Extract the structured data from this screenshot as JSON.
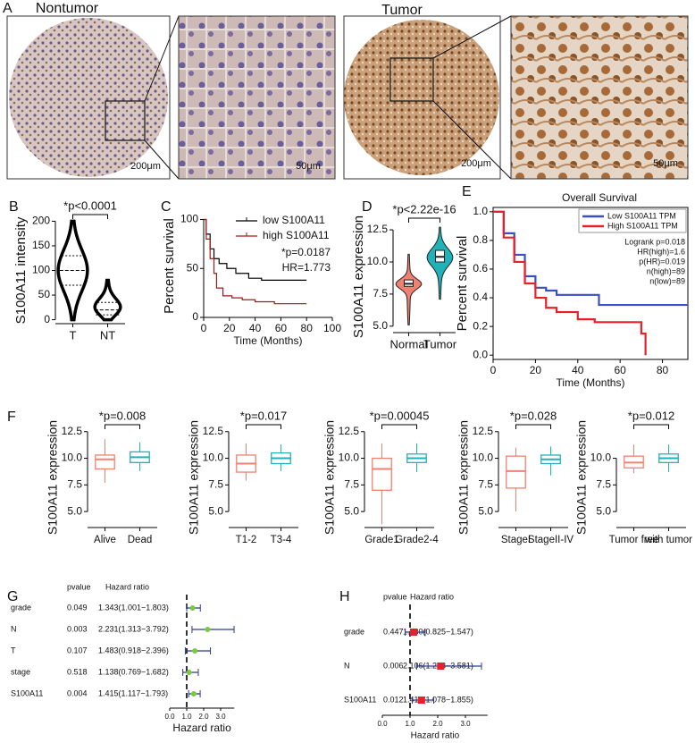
{
  "figure": {
    "panel": "A",
    "labels": [
      "Nontumor",
      "Tumor"
    ],
    "scale_bars": [
      "200μm",
      "50μm",
      "200μm",
      "50μm"
    ]
  },
  "chart_data": [
    {
      "panel": "B",
      "type": "violin",
      "style": "outline",
      "ylabel": "S100A11 intensity",
      "annotation": "*p<0.0001",
      "categories": [
        "T",
        "NT"
      ],
      "colors": [
        "#000000",
        "#000000"
      ],
      "stats": [
        {
          "min": 0,
          "q1": 70,
          "median": 100,
          "q3": 130,
          "max": 200
        },
        {
          "min": 0,
          "q1": 10,
          "median": 20,
          "q3": 35,
          "max": 80
        }
      ],
      "ylim": [
        -8,
        208
      ],
      "yticks": [
        0,
        50,
        100,
        150,
        200
      ]
    },
    {
      "panel": "C",
      "type": "km",
      "ylabel": "Percent survival",
      "xlabel": "Time (Months)",
      "annotations": [
        "*p=0.0187",
        "HR=1.773"
      ],
      "series": [
        {
          "name": "low S100A11",
          "color": "#000000",
          "x": [
            0,
            2,
            2,
            5,
            5,
            8,
            8,
            12,
            12,
            18,
            18,
            25,
            25,
            35,
            35,
            45,
            45,
            80
          ],
          "values": [
            100,
            100,
            85,
            85,
            70,
            70,
            60,
            60,
            55,
            55,
            50,
            50,
            45,
            45,
            40,
            40,
            38,
            38
          ]
        },
        {
          "name": "high S100A11",
          "color": "#a01818",
          "x": [
            0,
            2,
            2,
            5,
            5,
            8,
            8,
            10,
            10,
            15,
            15,
            22,
            22,
            30,
            30,
            40,
            40,
            55,
            55,
            80
          ],
          "values": [
            100,
            100,
            80,
            80,
            60,
            60,
            45,
            45,
            30,
            30,
            22,
            22,
            20,
            20,
            18,
            18,
            16,
            16,
            14,
            14
          ]
        }
      ],
      "xlim": [
        0,
        100
      ],
      "xticks": [
        0,
        20,
        40,
        60,
        80,
        100
      ],
      "ylim": [
        0,
        105
      ],
      "yticks": [
        0,
        50,
        100
      ]
    },
    {
      "panel": "D",
      "type": "violin",
      "style": "filled",
      "ylabel": "S100A11 expression",
      "annotation": "*p<2.22e-16",
      "categories": [
        "Normal",
        "Tumor"
      ],
      "colors": [
        "#f08070",
        "#20b2b8"
      ],
      "stats": [
        {
          "min": 5.1,
          "q1": 8.1,
          "median": 8.3,
          "q3": 8.6,
          "max": 10.6
        },
        {
          "min": 7.1,
          "q1": 10.0,
          "median": 10.4,
          "q3": 10.9,
          "max": 12.7
        }
      ],
      "ylim": [
        4.5,
        13.2
      ],
      "yticks": [
        {
          "value": 5,
          "label": "5.0"
        },
        7.5,
        {
          "value": 10,
          "label": "10.0"
        },
        12.5
      ]
    },
    {
      "panel": "E",
      "type": "km",
      "title": "Overall Survival",
      "ylabel": "Percent survival",
      "xlabel": "Time (Months)",
      "annotations": [
        "Logrank p=0.018",
        "HR(high)=1.6",
        "p(HR)=0.019",
        "n(high)=89",
        "n(low)=89"
      ],
      "series": [
        {
          "name": "Low S100A11 TPM",
          "color": "#3a4fc0",
          "x": [
            0,
            5,
            5,
            10,
            10,
            15,
            15,
            20,
            20,
            25,
            25,
            30,
            30,
            50,
            50,
            92
          ],
          "values": [
            1,
            1,
            0.85,
            0.85,
            0.7,
            0.7,
            0.55,
            0.55,
            0.47,
            0.47,
            0.45,
            0.45,
            0.42,
            0.42,
            0.35,
            0.35
          ]
        },
        {
          "name": "High S100A11 TPM",
          "color": "#e8202a",
          "x": [
            0,
            5,
            5,
            10,
            10,
            15,
            15,
            20,
            20,
            25,
            25,
            30,
            30,
            40,
            40,
            48,
            48,
            70,
            70,
            72,
            72
          ],
          "values": [
            1,
            1,
            0.82,
            0.82,
            0.65,
            0.65,
            0.5,
            0.5,
            0.4,
            0.4,
            0.33,
            0.33,
            0.3,
            0.3,
            0.25,
            0.25,
            0.23,
            0.23,
            0.15,
            0.15,
            0
          ]
        }
      ],
      "xlim": [
        0,
        92
      ],
      "xticks": [
        0,
        20,
        40,
        60,
        80
      ],
      "ylim": [
        -0.03,
        1.03
      ],
      "yticks": [
        {
          "value": 0,
          "label": "0.0"
        },
        0.2,
        0.4,
        0.6,
        0.8,
        {
          "value": 1,
          "label": "1.0"
        }
      ]
    },
    {
      "panel": "F",
      "type": "box",
      "ylabel": "S100A11 expression",
      "annotation": "*p=0.008",
      "categories": [
        "Alive",
        "Dead"
      ],
      "colors": [
        "#f08070",
        "#20b2b8"
      ],
      "stats": [
        {
          "min": 7.7,
          "q1": 9.0,
          "median": 9.9,
          "q3": 10.3,
          "max": 11.8
        },
        {
          "min": 8.8,
          "q1": 9.6,
          "median": 10.1,
          "q3": 10.6,
          "max": 11.5
        }
      ],
      "ylim": [
        3.5,
        12.9
      ],
      "yticks": [
        {
          "value": 5,
          "label": "5.0"
        },
        7.5,
        {
          "value": 10,
          "label": "10.0"
        },
        12.5
      ]
    },
    {
      "type": "box",
      "ylabel": "S100A11 expression",
      "annotation": "*p=0.017",
      "categories": [
        "T1-2",
        "T3-4"
      ],
      "colors": [
        "#f08070",
        "#20b2b8"
      ],
      "stats": [
        {
          "min": 7.9,
          "q1": 8.7,
          "median": 9.5,
          "q3": 10.3,
          "max": 11.4
        },
        {
          "min": 8.8,
          "q1": 9.5,
          "median": 10.0,
          "q3": 10.5,
          "max": 11.3
        }
      ],
      "ylim": [
        3.5,
        12.9
      ],
      "yticks": [
        {
          "value": 5,
          "label": "5.0"
        },
        7.5,
        {
          "value": 10,
          "label": "10.0"
        },
        12.5
      ]
    },
    {
      "type": "box",
      "ylabel": "S100A11 expression",
      "annotation": "*p=0.00045",
      "categories": [
        "Grade1",
        "Grade2-4"
      ],
      "colors": [
        "#f08070",
        "#20b2b8"
      ],
      "stats": [
        {
          "min": 3.8,
          "q1": 7.0,
          "median": 9.0,
          "q3": 10.0,
          "max": 11.4
        },
        {
          "min": 8.7,
          "q1": 9.6,
          "median": 10.0,
          "q3": 10.4,
          "max": 11.4
        }
      ],
      "ylim": [
        3.5,
        12.9
      ],
      "yticks": [
        {
          "value": 5,
          "label": "5.0"
        },
        7.5,
        {
          "value": 10,
          "label": "10.0"
        },
        12.5
      ]
    },
    {
      "type": "box",
      "ylabel": "S100A11 expression",
      "annotation": "*p=0.028",
      "categories": [
        "StageI",
        "StageII-IV"
      ],
      "colors": [
        "#f08070",
        "#20b2b8"
      ],
      "stats": [
        {
          "min": 5.0,
          "q1": 7.2,
          "median": 8.8,
          "q3": 10.2,
          "max": 11.0
        },
        {
          "min": 8.4,
          "q1": 9.5,
          "median": 9.9,
          "q3": 10.3,
          "max": 11.1
        }
      ],
      "ylim": [
        3.5,
        12.9
      ],
      "yticks": [
        {
          "value": 5,
          "label": "5.0"
        },
        7.5,
        {
          "value": 10,
          "label": "10.0"
        },
        12.5
      ]
    },
    {
      "type": "box",
      "ylabel": "S100A11 expression",
      "annotation": "*p=0.012",
      "categories": [
        "Tumor free",
        "with tumor"
      ],
      "colors": [
        "#f08070",
        "#20b2b8"
      ],
      "stats": [
        {
          "min": 8.6,
          "q1": 9.1,
          "median": 9.6,
          "q3": 10.2,
          "max": 11.3
        },
        {
          "min": 8.7,
          "q1": 9.6,
          "median": 10.0,
          "q3": 10.4,
          "max": 11.3
        }
      ],
      "ylim": [
        3.5,
        12.9
      ],
      "yticks": [
        {
          "value": 5,
          "label": "5.0"
        },
        7.5,
        {
          "value": 10,
          "label": "10.0"
        }
      ]
    },
    {
      "panel": "G",
      "type": "forest",
      "columns": [
        "pvalue",
        "Hazard ratio"
      ],
      "xlabel": "Hazard ratio",
      "reference_line": 1,
      "color": "#7ac943",
      "line_color": "#2b3a8c",
      "rows": [
        {
          "name": "grade",
          "pvalue": 0.049,
          "hr": 1.343,
          "lo": 1.001,
          "hi": 1.803,
          "label": "1.343(1.001−1.803)"
        },
        {
          "name": "N",
          "pvalue": 0.003,
          "hr": 2.231,
          "lo": 1.313,
          "hi": 3.792,
          "label": "2.231(1.313−3.792)"
        },
        {
          "name": "T",
          "pvalue": 0.107,
          "hr": 1.483,
          "lo": 0.918,
          "hi": 2.396,
          "label": "1.483(0.918−2.396)"
        },
        {
          "name": "stage",
          "pvalue": 0.518,
          "hr": 1.138,
          "lo": 0.769,
          "hi": 1.682,
          "label": "1.138(0.769−1.682)"
        },
        {
          "name": "S100A11",
          "pvalue": 0.004,
          "hr": 1.415,
          "lo": 1.117,
          "hi": 1.793,
          "label": "1.415(1.117−1.793)"
        }
      ],
      "xlim": [
        0,
        3.8
      ],
      "xticks": [
        {
          "value": 0,
          "label": "0.0"
        },
        {
          "value": 1,
          "label": "1.0"
        },
        {
          "value": 2,
          "label": "2.0"
        },
        {
          "value": 3,
          "label": "3.0"
        }
      ]
    },
    {
      "panel": "H",
      "type": "forest",
      "columns": [
        "pvalue",
        "Hazard ratio"
      ],
      "xlabel": "Hazard ratio",
      "reference_line": 1,
      "color": "#e8202a",
      "line_color": "#2b3a8c",
      "rows": [
        {
          "name": "grade",
          "pvalue": 0.447,
          "hr": 1.13,
          "lo": 0.825,
          "hi": 1.547,
          "label": "1.130(0.825−1.547)"
        },
        {
          "name": "N",
          "pvalue": 0.006,
          "hr": 2.106,
          "lo": 1.238,
          "hi": 3.581,
          "label": "2.106(1.238−3.581)"
        },
        {
          "name": "S100A11",
          "pvalue": 0.012,
          "hr": 1.414,
          "lo": 1.078,
          "hi": 1.855,
          "label": "1.414(1.078−1.855)"
        }
      ],
      "xlim": [
        0,
        3.8
      ],
      "xticks": [
        {
          "value": 0,
          "label": "0.0"
        },
        {
          "value": 1,
          "label": "1.0"
        },
        {
          "value": 2,
          "label": "2.0"
        },
        {
          "value": 3,
          "label": "3.0"
        }
      ]
    }
  ]
}
